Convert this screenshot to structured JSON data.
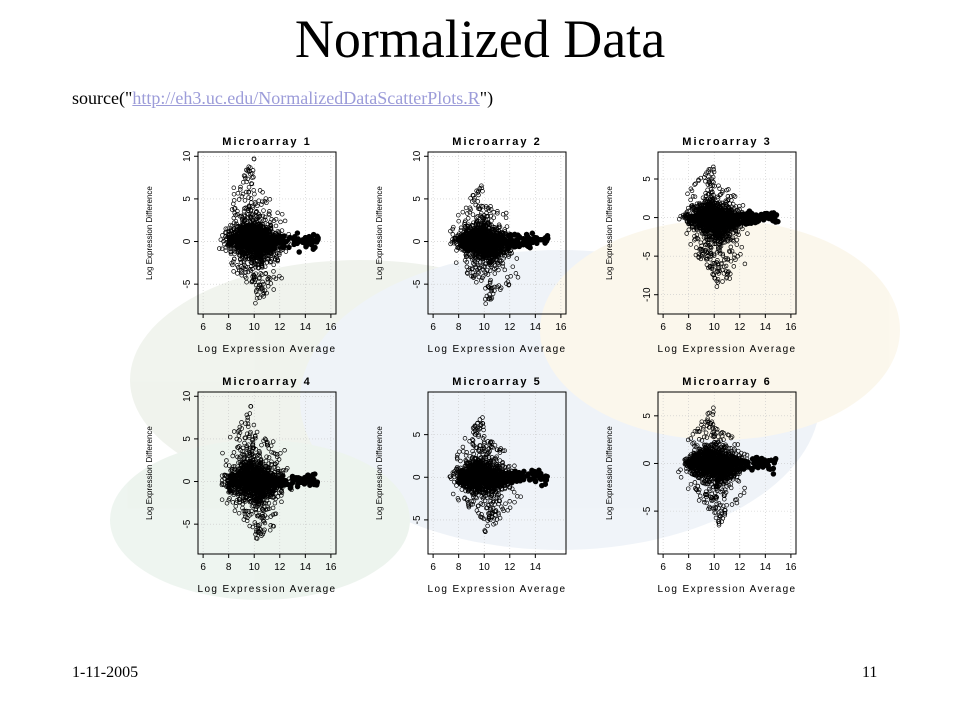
{
  "slide": {
    "title": "Normalized Data",
    "source_prefix": "source(\"",
    "source_link": "http://eh3.uc.edu/NormalizedDataScatterPlots.R",
    "source_suffix": "\")",
    "date": "1-11-2005",
    "page_number": "11"
  },
  "chart_data": [
    {
      "type": "scatter",
      "title": "Microarray 1",
      "xlabel": "Log Expression Average",
      "ylabel": "Log Expression Difference",
      "xlim": [
        5.6,
        16.4
      ],
      "ylim": [
        -8.5,
        10.5
      ],
      "xticks": [
        6,
        8,
        10,
        12,
        14,
        16
      ],
      "yticks": [
        -5,
        0,
        5,
        10
      ],
      "grid": true,
      "shape": {
        "x_min": 6.0,
        "x_peak": 10.0,
        "x_max": 16.0,
        "upper_peak": 10.0,
        "lower_peak": -7.5,
        "upper_base": 0.8,
        "lower_base": -0.4
      }
    },
    {
      "type": "scatter",
      "title": "Microarray 2",
      "xlabel": "Log Expression Average",
      "ylabel": "Log Expression Difference",
      "xlim": [
        5.6,
        16.4
      ],
      "ylim": [
        -8.5,
        10.5
      ],
      "xticks": [
        6,
        8,
        10,
        12,
        14,
        16
      ],
      "yticks": [
        -5,
        0,
        5,
        10
      ],
      "grid": true,
      "shape": {
        "x_min": 6.0,
        "x_peak": 10.0,
        "x_max": 16.0,
        "upper_peak": 7.0,
        "lower_peak": -7.5,
        "upper_base": 0.6,
        "lower_base": -0.4
      }
    },
    {
      "type": "scatter",
      "title": "Microarray 3",
      "xlabel": "Log Expression Average",
      "ylabel": "Log Expression Difference",
      "xlim": [
        5.6,
        16.4
      ],
      "ylim": [
        -12.5,
        8.5
      ],
      "xticks": [
        6,
        8,
        10,
        12,
        14,
        16
      ],
      "yticks": [
        -10,
        -5,
        0,
        5
      ],
      "grid": true,
      "shape": {
        "x_min": 6.0,
        "x_peak": 10.0,
        "x_max": 16.0,
        "upper_peak": 7.0,
        "lower_peak": -10.0,
        "upper_base": 0.4,
        "lower_base": -0.4
      }
    },
    {
      "type": "scatter",
      "title": "Microarray 4",
      "xlabel": "Log Expression Average",
      "ylabel": "Log Expression Difference",
      "xlim": [
        5.6,
        16.4
      ],
      "ylim": [
        -8.5,
        10.5
      ],
      "xticks": [
        6,
        8,
        10,
        12,
        14,
        16
      ],
      "yticks": [
        -5,
        0,
        5,
        10
      ],
      "grid": true,
      "shape": {
        "x_min": 6.0,
        "x_peak": 10.0,
        "x_max": 16.0,
        "upper_peak": 9.5,
        "lower_peak": -7.5,
        "upper_base": 0.6,
        "lower_base": -0.5
      }
    },
    {
      "type": "scatter",
      "title": "Microarray 5",
      "xlabel": "Log Expression Average",
      "ylabel": "Log Expression Difference",
      "xlim": [
        5.6,
        16.4
      ],
      "ylim": [
        -9.0,
        10.0
      ],
      "xticks": [
        6,
        8,
        10,
        12,
        14
      ],
      "yticks": [
        -5,
        0,
        5
      ],
      "grid": true,
      "shape": {
        "x_min": 6.0,
        "x_peak": 10.0,
        "x_max": 15.5,
        "upper_peak": 7.5,
        "lower_peak": -6.5,
        "upper_base": 0.4,
        "lower_base": -0.4
      }
    },
    {
      "type": "scatter",
      "title": "Microarray 6",
      "xlabel": "Log Expression Average",
      "ylabel": "Log Expression Difference",
      "xlim": [
        5.6,
        16.4
      ],
      "ylim": [
        -9.5,
        7.5
      ],
      "xticks": [
        6,
        8,
        10,
        12,
        14,
        16
      ],
      "yticks": [
        -5,
        0,
        5
      ],
      "grid": true,
      "shape": {
        "x_min": 6.0,
        "x_peak": 10.0,
        "x_max": 16.0,
        "upper_peak": 6.0,
        "lower_peak": -7.0,
        "upper_base": 0.4,
        "lower_base": -0.5
      }
    }
  ]
}
